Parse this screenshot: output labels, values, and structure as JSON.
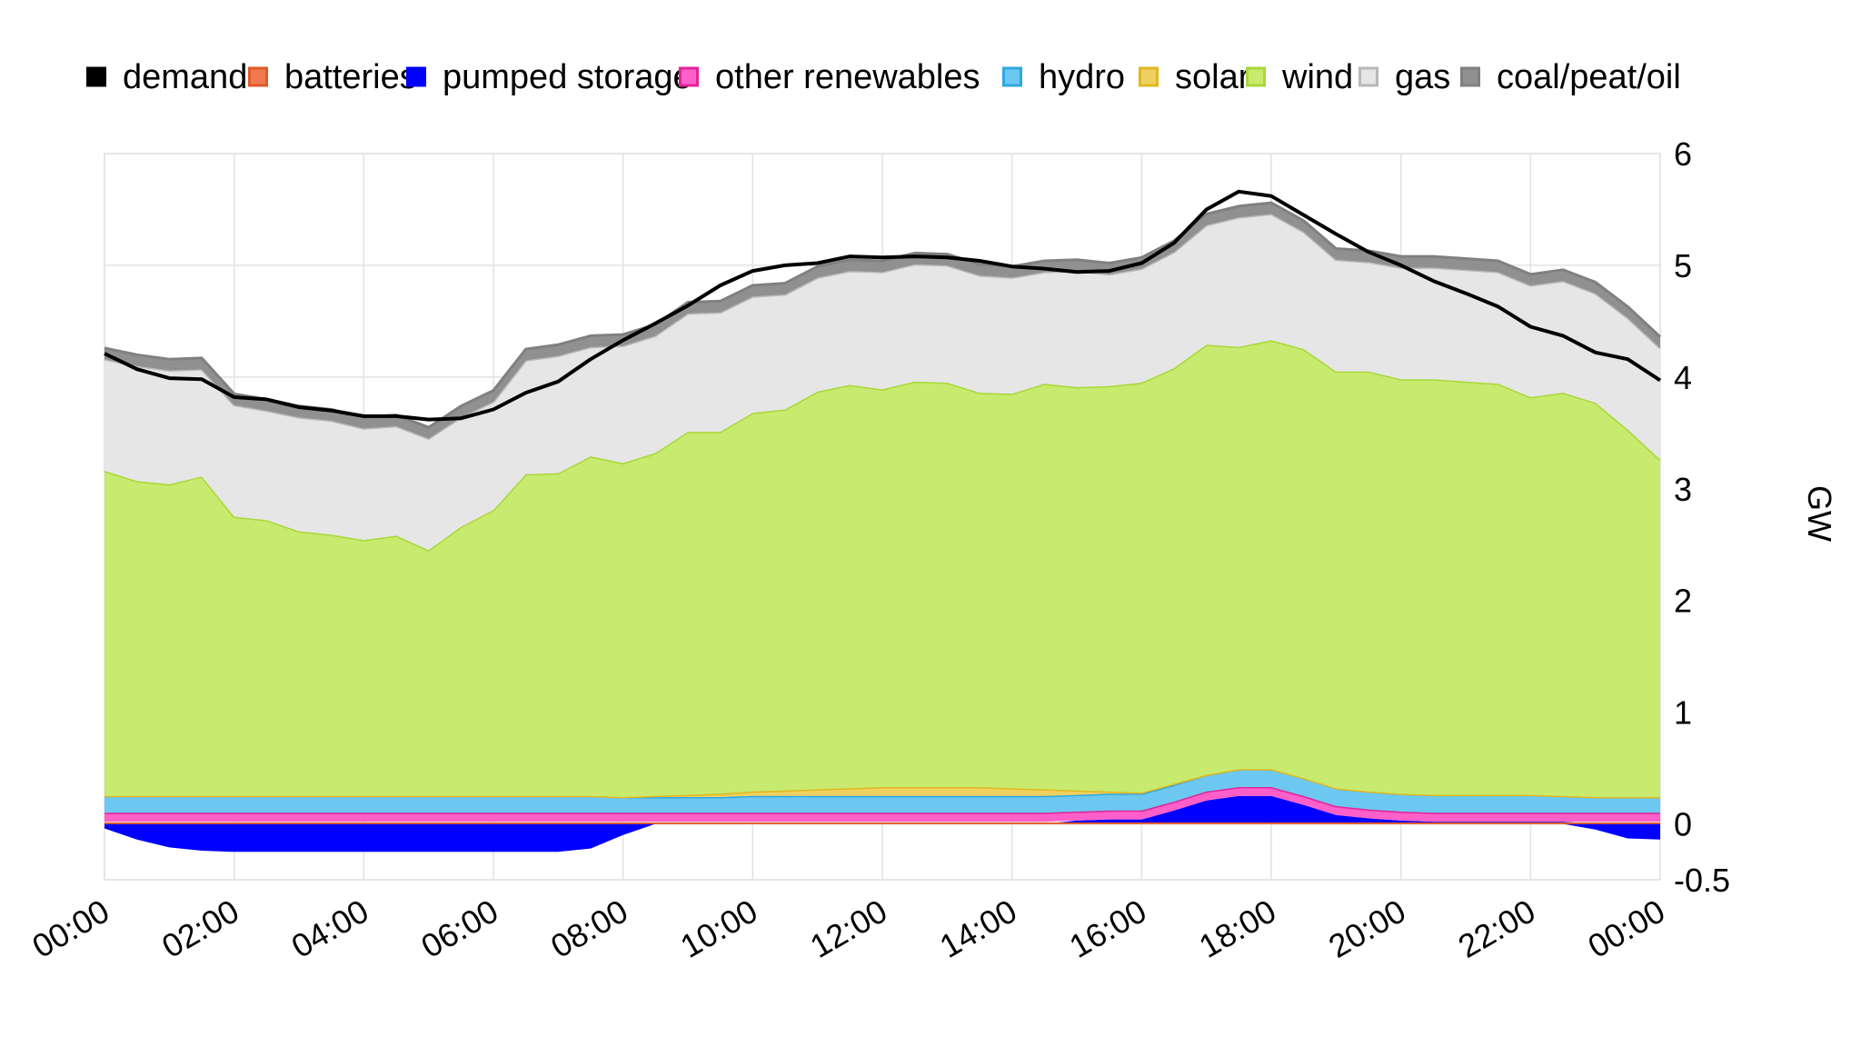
{
  "chart_data": {
    "type": "area",
    "ylabel": "GW",
    "ylim": [
      -0.5,
      6
    ],
    "y_ticks": [
      "6",
      "5",
      "4",
      "3",
      "2",
      "1",
      "0",
      "-0.5"
    ],
    "x_tick_labels": [
      "00:00",
      "02:00",
      "04:00",
      "06:00",
      "08:00",
      "10:00",
      "12:00",
      "14:00",
      "16:00",
      "18:00",
      "20:00",
      "22:00",
      "00:00"
    ],
    "x_tick_hours": [
      0,
      2,
      4,
      6,
      8,
      10,
      12,
      14,
      16,
      18,
      20,
      22,
      24
    ],
    "grid": true,
    "legend_position": "top",
    "legend": [
      {
        "name": "demand",
        "color": "#000000",
        "border": "#000000"
      },
      {
        "name": "batteries",
        "color": "#f07a50",
        "border": "#e05a28"
      },
      {
        "name": "pumped storage",
        "color": "#0000ff",
        "border": "#0000ff"
      },
      {
        "name": "other renewables",
        "color": "#ff5fc8",
        "border": "#e0249a"
      },
      {
        "name": "hydro",
        "color": "#6cc8f0",
        "border": "#2ea8e0"
      },
      {
        "name": "solar",
        "color": "#f0d060",
        "border": "#e0b820"
      },
      {
        "name": "wind",
        "color": "#c8ea6e",
        "border": "#a8d838"
      },
      {
        "name": "gas",
        "color": "#e6e6e6",
        "border": "#b8b8b8"
      },
      {
        "name": "coal/peat/oil",
        "color": "#909090",
        "border": "#808080"
      }
    ],
    "x_hours": [
      0,
      0.5,
      1,
      1.5,
      2,
      2.5,
      3,
      3.5,
      4,
      4.5,
      5,
      5.5,
      6,
      6.5,
      7,
      7.5,
      8,
      8.5,
      9,
      9.5,
      10,
      10.5,
      11,
      11.5,
      12,
      12.5,
      13,
      13.5,
      14,
      14.5,
      15,
      15.5,
      16,
      16.5,
      17,
      17.5,
      18,
      18.5,
      19,
      19.5,
      20,
      20.5,
      21,
      21.5,
      22,
      22.5,
      23,
      23.5,
      24
    ],
    "series": {
      "pumped_storage": [
        -0.04,
        -0.14,
        -0.21,
        -0.24,
        -0.25,
        -0.25,
        -0.25,
        -0.25,
        -0.25,
        -0.25,
        -0.25,
        -0.25,
        -0.25,
        -0.25,
        -0.25,
        -0.22,
        -0.1,
        0,
        0,
        0,
        0,
        0,
        0,
        0,
        0,
        0,
        0,
        0,
        0,
        0,
        0.03,
        0.04,
        0.04,
        0.12,
        0.21,
        0.25,
        0.25,
        0.17,
        0.08,
        0.05,
        0.03,
        0.02,
        0.02,
        0.02,
        0.02,
        0.02,
        -0.05,
        -0.13,
        -0.14
      ],
      "gen_base": [
        0.02,
        0.02,
        0.02,
        0.02,
        0.02,
        0.02,
        0.02,
        0.02,
        0.02,
        0.02,
        0.02,
        0.02,
        0.02,
        0.02,
        0.02,
        0.02,
        0.02,
        0.02,
        0.02,
        0.02,
        0.02,
        0.02,
        0.02,
        0.02,
        0.02,
        0.02,
        0.02,
        0.02,
        0.02,
        0.02,
        0.03,
        0.04,
        0.04,
        0.12,
        0.21,
        0.25,
        0.25,
        0.17,
        0.08,
        0.05,
        0.03,
        0.02,
        0.02,
        0.02,
        0.02,
        0.02,
        0.02,
        0.02,
        0.02
      ],
      "other_renewables": [
        0.08,
        0.08,
        0.08,
        0.08,
        0.08,
        0.08,
        0.08,
        0.08,
        0.08,
        0.08,
        0.08,
        0.08,
        0.08,
        0.08,
        0.08,
        0.08,
        0.08,
        0.08,
        0.08,
        0.08,
        0.08,
        0.08,
        0.08,
        0.08,
        0.08,
        0.08,
        0.08,
        0.08,
        0.08,
        0.08,
        0.08,
        0.08,
        0.08,
        0.08,
        0.08,
        0.08,
        0.08,
        0.08,
        0.08,
        0.08,
        0.08,
        0.08,
        0.08,
        0.08,
        0.08,
        0.08,
        0.08,
        0.08,
        0.08
      ],
      "hydro": [
        0.15,
        0.15,
        0.15,
        0.15,
        0.15,
        0.15,
        0.15,
        0.15,
        0.15,
        0.15,
        0.15,
        0.15,
        0.15,
        0.15,
        0.15,
        0.15,
        0.14,
        0.14,
        0.14,
        0.14,
        0.15,
        0.15,
        0.15,
        0.15,
        0.15,
        0.15,
        0.15,
        0.15,
        0.15,
        0.15,
        0.15,
        0.15,
        0.15,
        0.15,
        0.15,
        0.16,
        0.16,
        0.16,
        0.16,
        0.16,
        0.16,
        0.16,
        0.16,
        0.16,
        0.16,
        0.15,
        0.14,
        0.14,
        0.14
      ],
      "solar": [
        0,
        0,
        0,
        0,
        0,
        0,
        0,
        0,
        0,
        0,
        0,
        0,
        0,
        0,
        0,
        0,
        0,
        0.01,
        0.02,
        0.03,
        0.04,
        0.05,
        0.06,
        0.07,
        0.08,
        0.08,
        0.08,
        0.08,
        0.07,
        0.06,
        0.04,
        0.02,
        0.01,
        0.01,
        0,
        0,
        0,
        0,
        0,
        0,
        0,
        0,
        0,
        0,
        0,
        0,
        0,
        0,
        0
      ],
      "wind": [
        2.91,
        2.82,
        2.79,
        2.86,
        2.5,
        2.47,
        2.37,
        2.34,
        2.29,
        2.33,
        2.2,
        2.41,
        2.56,
        2.88,
        2.89,
        3.04,
        2.99,
        3.07,
        3.25,
        3.24,
        3.39,
        3.41,
        3.56,
        3.61,
        3.56,
        3.63,
        3.62,
        3.53,
        3.53,
        3.63,
        3.61,
        3.63,
        3.67,
        3.72,
        3.85,
        3.78,
        3.84,
        3.84,
        3.73,
        3.76,
        3.71,
        3.72,
        3.7,
        3.68,
        3.56,
        3.61,
        3.53,
        3.29,
        3.02
      ],
      "gas": [
        1.0,
        1.03,
        1.02,
        0.96,
        1.0,
        0.98,
        1.02,
        1.02,
        1.0,
        0.98,
        1.0,
        0.98,
        0.97,
        1.02,
        1.05,
        0.98,
        1.05,
        1.05,
        1.06,
        1.07,
        1.04,
        1.03,
        1.02,
        1.02,
        1.05,
        1.05,
        1.05,
        1.05,
        1.04,
        1.0,
        1.04,
        1.0,
        1.02,
        1.04,
        1.07,
        1.16,
        1.13,
        1.05,
        1.0,
        0.98,
        1.0,
        1.0,
        1.0,
        1.0,
        1.0,
        1.0,
        0.98,
        1.0,
        1.0
      ],
      "coal_peat_oil": [
        0.1,
        0.1,
        0.1,
        0.1,
        0.1,
        0.1,
        0.1,
        0.1,
        0.1,
        0.1,
        0.1,
        0.1,
        0.1,
        0.1,
        0.1,
        0.1,
        0.1,
        0.1,
        0.1,
        0.1,
        0.1,
        0.1,
        0.1,
        0.1,
        0.1,
        0.1,
        0.1,
        0.1,
        0.1,
        0.1,
        0.1,
        0.1,
        0.1,
        0.1,
        0.1,
        0.1,
        0.1,
        0.1,
        0.1,
        0.1,
        0.1,
        0.1,
        0.1,
        0.1,
        0.1,
        0.1,
        0.1,
        0.1,
        0.1
      ],
      "demand": [
        4.21,
        4.07,
        3.99,
        3.98,
        3.82,
        3.8,
        3.73,
        3.7,
        3.65,
        3.65,
        3.62,
        3.63,
        3.71,
        3.86,
        3.96,
        4.16,
        4.33,
        4.48,
        4.64,
        4.82,
        4.95,
        5.0,
        5.02,
        5.08,
        5.07,
        5.08,
        5.07,
        5.04,
        4.99,
        4.97,
        4.94,
        4.95,
        5.02,
        5.2,
        5.5,
        5.66,
        5.62,
        5.45,
        5.28,
        5.12,
        5.0,
        4.86,
        4.75,
        4.63,
        4.45,
        4.37,
        4.22,
        4.16,
        3.97
      ]
    }
  }
}
